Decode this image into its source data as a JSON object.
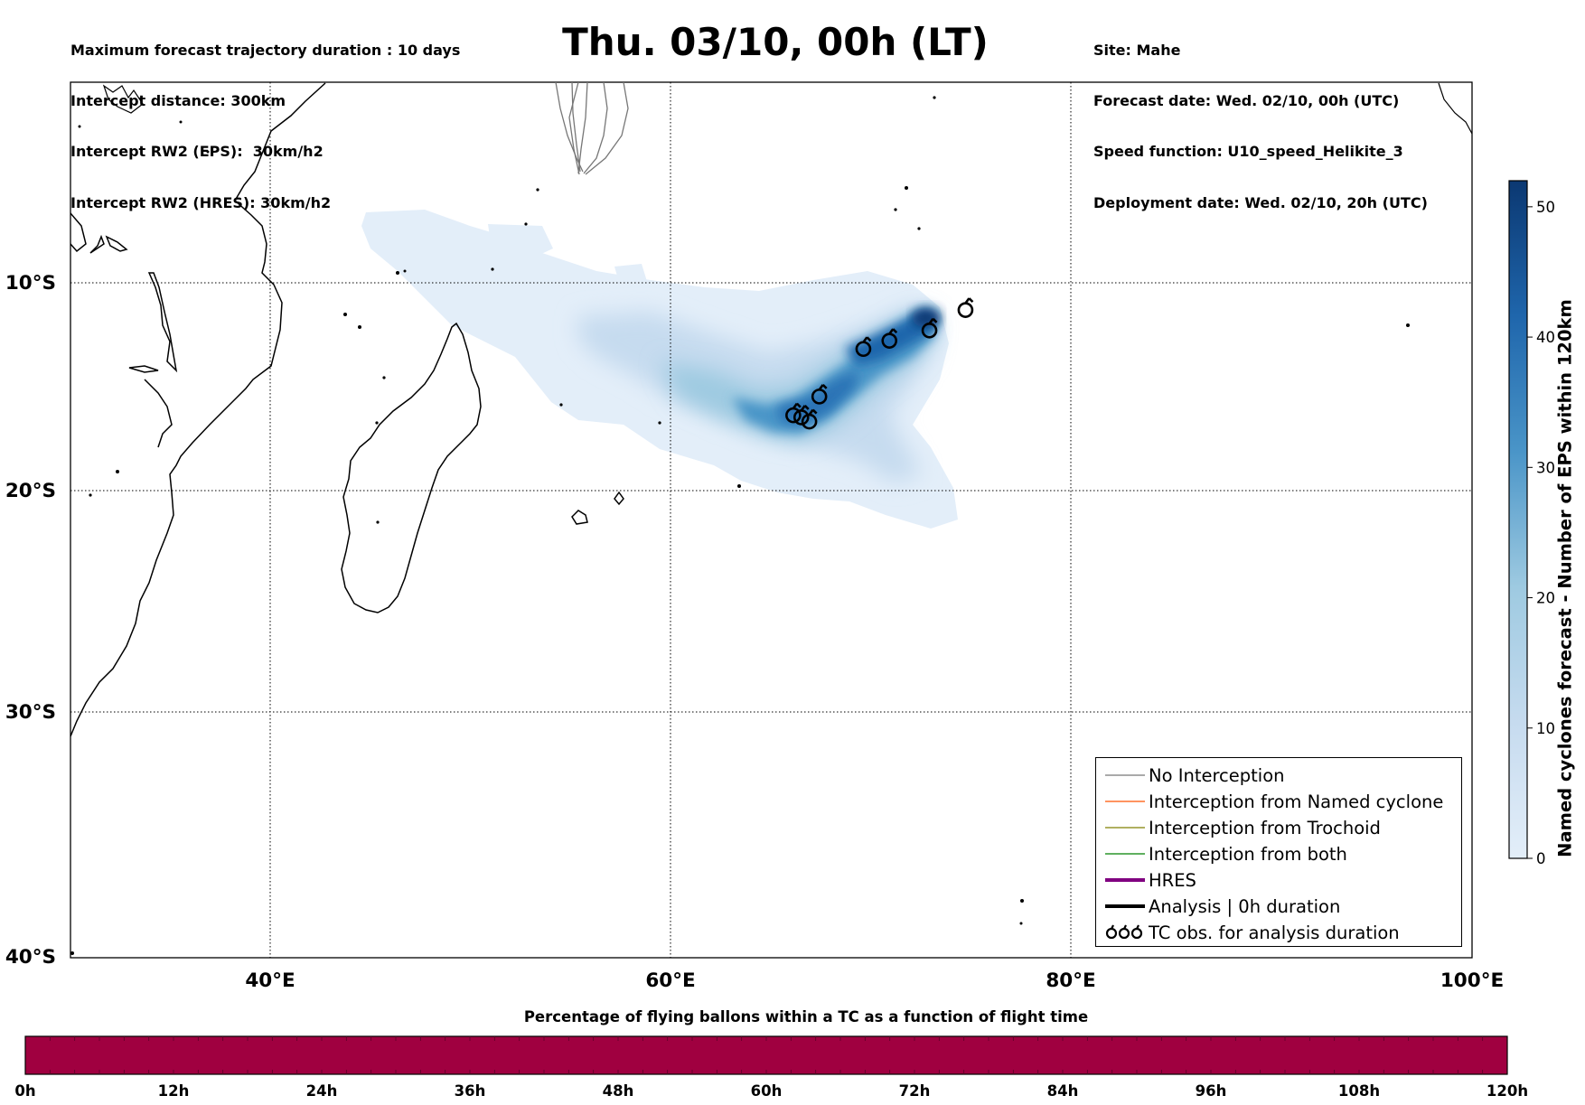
{
  "title": "Thu. 03/10, 00h (LT)",
  "header_left": [
    "Maximum forecast trajectory duration : 10 days",
    "Intercept distance: 300km",
    "Intercept RW2 (EPS):  30km/h2",
    "Intercept RW2 (HRES): 30km/h2"
  ],
  "header_right": [
    "Site: Mahe",
    "Forecast date: Wed. 02/10, 00h (UTC)",
    "Speed function: U10_speed_Helikite_3",
    "Deployment date: Wed. 02/10, 20h (UTC)"
  ],
  "map": {
    "lon_range": [
      30,
      100
    ],
    "lat_range": [
      0,
      -40
    ],
    "lon_ticks": [
      "40°E",
      "60°E",
      "80°E",
      "100°E"
    ],
    "lat_ticks": [
      "10°S",
      "20°S",
      "30°S",
      "40°S"
    ],
    "gridlines": true,
    "tc_obs_positions": [
      {
        "lon": 74.7,
        "lat": -11.3
      },
      {
        "lon": 72.9,
        "lat": -12.3
      },
      {
        "lon": 70.9,
        "lat": -12.8
      },
      {
        "lon": 69.6,
        "lat": -13.2
      },
      {
        "lon": 67.4,
        "lat": -15.5
      },
      {
        "lon": 66.1,
        "lat": -16.4
      },
      {
        "lon": 66.5,
        "lat": -16.5
      },
      {
        "lon": 66.9,
        "lat": -16.7
      }
    ]
  },
  "legend": {
    "items": [
      {
        "label": "No Interception",
        "color": "#777777",
        "kind": "thin-line"
      },
      {
        "label": "Interception from Named cyclone",
        "color": "#ff5500",
        "kind": "thin-line"
      },
      {
        "label": "Interception from Trochoid",
        "color": "#808000",
        "kind": "thin-line"
      },
      {
        "label": "Interception from both",
        "color": "#008000",
        "kind": "thin-line"
      },
      {
        "label": "HRES",
        "color": "#800080",
        "kind": "thick-line"
      },
      {
        "label": "Analysis | 0h duration",
        "color": "#000000",
        "kind": "thick-line"
      },
      {
        "label": "TC obs. for analysis duration",
        "color": "#000000",
        "kind": "tc-symbols"
      }
    ],
    "position": "lower-right"
  },
  "colorbar": {
    "label": "Named cyclones forecast - Number of EPS within 120km",
    "ticks": [
      "0",
      "10",
      "20",
      "30",
      "40",
      "50"
    ],
    "min": 0,
    "max": 52,
    "color_low": "#e3eef9",
    "color_high": "#0b3872"
  },
  "flight_bar": {
    "title": "Percentage of flying ballons within a TC as a function of flight time",
    "color": "#a00040",
    "tick_labels": [
      "0h",
      "12h",
      "24h",
      "36h",
      "48h",
      "60h",
      "72h",
      "84h",
      "96h",
      "108h",
      "120h"
    ]
  }
}
